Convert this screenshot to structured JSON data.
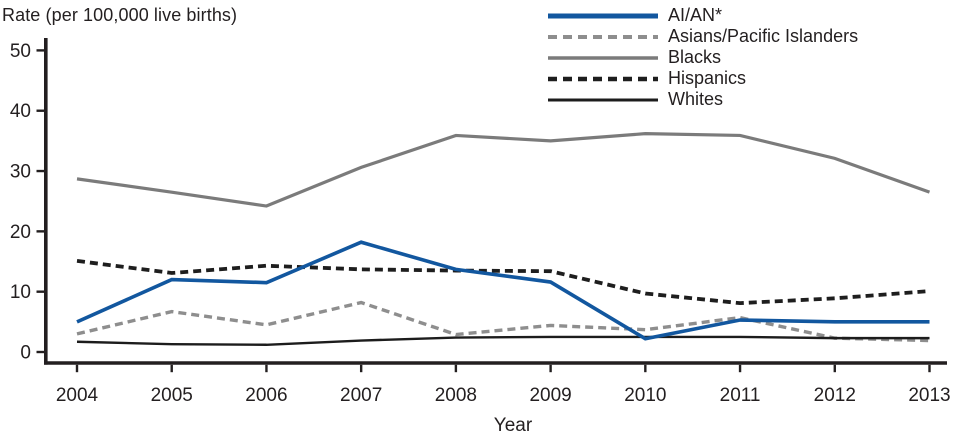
{
  "figure": {
    "title": "Rate (per 100,000 live births)",
    "xlabel": "Year"
  },
  "chart_data": {
    "type": "line",
    "title": "Rate (per 100,000 live births)",
    "xlabel": "Year",
    "ylabel": "Rate (per 100,000 live births)",
    "x": [
      2004,
      2005,
      2006,
      2007,
      2008,
      2009,
      2010,
      2011,
      2012,
      2013
    ],
    "ylim": [
      0,
      50
    ],
    "yticks": [
      0,
      10,
      20,
      30,
      40,
      50
    ],
    "grid": false,
    "legend_position": "top-right",
    "axis_color": "#231f20",
    "series": [
      {
        "name": "AI/AN*",
        "color": "#12579f",
        "style": "solid",
        "width": 3.6,
        "values": [
          5.0,
          12.0,
          11.5,
          18.2,
          13.7,
          11.6,
          2.2,
          5.3,
          5.0,
          5.0
        ]
      },
      {
        "name": "Asians/Pacific Islanders",
        "color": "#8e8e8e",
        "style": "dashed",
        "width": 3.4,
        "values": [
          3.0,
          6.7,
          4.5,
          8.2,
          2.9,
          4.4,
          3.7,
          5.7,
          2.3,
          1.9
        ]
      },
      {
        "name": "Blacks",
        "color": "#7b7b7b",
        "style": "solid",
        "width": 3.2,
        "values": [
          28.7,
          26.5,
          24.2,
          30.6,
          35.9,
          35.0,
          36.2,
          35.9,
          32.1,
          26.5
        ]
      },
      {
        "name": "Hispanics",
        "color": "#1e1e1e",
        "style": "dashed",
        "width": 3.8,
        "values": [
          15.1,
          13.1,
          14.3,
          13.7,
          13.5,
          13.4,
          9.7,
          8.1,
          8.9,
          10.1
        ]
      },
      {
        "name": "Whites",
        "color": "#1c1c1c",
        "style": "solid",
        "width": 2.4,
        "values": [
          1.7,
          1.3,
          1.2,
          1.9,
          2.4,
          2.5,
          2.5,
          2.5,
          2.3,
          2.3
        ]
      }
    ]
  }
}
